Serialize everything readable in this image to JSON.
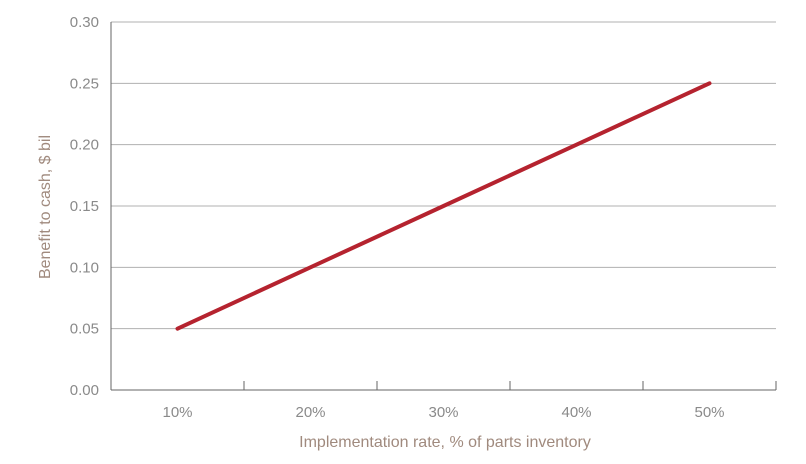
{
  "chart_data": {
    "type": "line",
    "title": "",
    "xlabel": "Implementation rate, % of parts inventory",
    "ylabel": "Benefit to cash, $ bil",
    "categories": [
      "10%",
      "20%",
      "30%",
      "40%",
      "50%"
    ],
    "series": [
      {
        "name": "",
        "values": [
          0.05,
          0.1,
          0.15,
          0.2,
          0.25
        ]
      }
    ],
    "ylim": [
      0,
      0.3
    ],
    "yticks": [
      "0.00",
      "0.05",
      "0.10",
      "0.15",
      "0.20",
      "0.25",
      "0.30"
    ],
    "grid": true,
    "legend": "none",
    "colors": {
      "series": "#b5232f",
      "grid": "#b0b0b0",
      "axis": "#666666",
      "tick_text": "#8a8a8a",
      "axis_title": "#a08a7e"
    }
  }
}
